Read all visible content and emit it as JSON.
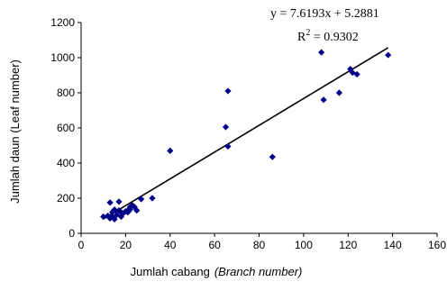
{
  "chart_data": {
    "type": "scatter",
    "xlabel": "Jumlah cabang",
    "xlabel_italic": "(Branch number)",
    "ylabel": "Jumlah daun (Leaf number)",
    "xlim": [
      0,
      160
    ],
    "ylim": [
      0,
      1200
    ],
    "x_ticks": [
      "0",
      "20",
      "40",
      "60",
      "80",
      "100",
      "120",
      "140",
      "160"
    ],
    "y_ticks": [
      "0",
      "200",
      "400",
      "600",
      "800",
      "1000",
      "1200"
    ],
    "grid": false,
    "marker_color": "#00008B",
    "trendline": {
      "slope": 7.6193,
      "intercept": 5.2881,
      "x_range": [
        10,
        138
      ],
      "equation": "y = 7.6193x + 5.2881",
      "r2_prefix": "R",
      "r2_exp": "2",
      "r2_suffix": " = 0.9302"
    },
    "points": [
      [
        10,
        95
      ],
      [
        12,
        100
      ],
      [
        13,
        175
      ],
      [
        13,
        85
      ],
      [
        14,
        120
      ],
      [
        14,
        95
      ],
      [
        15,
        80
      ],
      [
        15,
        135
      ],
      [
        16,
        105
      ],
      [
        17,
        130
      ],
      [
        17,
        180
      ],
      [
        18,
        120
      ],
      [
        18,
        95
      ],
      [
        19,
        115
      ],
      [
        20,
        125
      ],
      [
        21,
        130
      ],
      [
        21,
        120
      ],
      [
        22,
        150
      ],
      [
        22,
        135
      ],
      [
        23,
        160
      ],
      [
        24,
        150
      ],
      [
        25,
        130
      ],
      [
        27,
        195
      ],
      [
        32,
        200
      ],
      [
        40,
        470
      ],
      [
        65,
        605
      ],
      [
        66,
        810
      ],
      [
        66,
        495
      ],
      [
        86,
        435
      ],
      [
        108,
        1030
      ],
      [
        109,
        760
      ],
      [
        116,
        800
      ],
      [
        121,
        935
      ],
      [
        122,
        915
      ],
      [
        124,
        905
      ],
      [
        138,
        1015
      ]
    ]
  }
}
